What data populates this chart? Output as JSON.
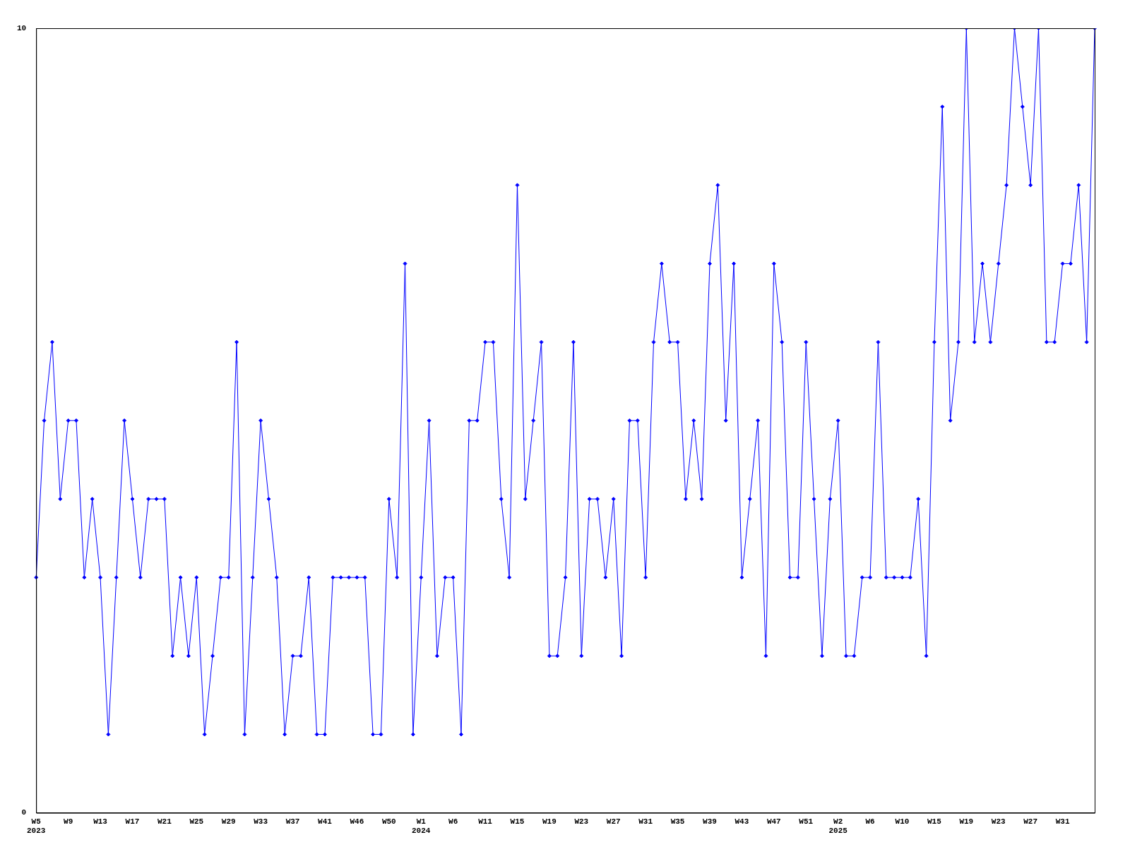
{
  "chart_data": {
    "type": "line",
    "categories": [
      "W5\n2023",
      null,
      null,
      null,
      "W9",
      null,
      null,
      null,
      "W13",
      null,
      null,
      null,
      "W17",
      null,
      null,
      null,
      "W21",
      null,
      null,
      null,
      "W25",
      null,
      null,
      null,
      "W29",
      null,
      null,
      null,
      "W33",
      null,
      null,
      null,
      "W37",
      null,
      null,
      null,
      "W41",
      null,
      null,
      null,
      "W46",
      null,
      null,
      null,
      "W50",
      null,
      null,
      null,
      "W1\n2024",
      null,
      null,
      null,
      "W6",
      null,
      null,
      null,
      "W11",
      null,
      null,
      null,
      "W15",
      null,
      null,
      null,
      "W19",
      null,
      null,
      null,
      "W23",
      null,
      null,
      null,
      "W27",
      null,
      null,
      null,
      "W31",
      null,
      null,
      null,
      "W35",
      null,
      null,
      null,
      "W39",
      null,
      null,
      null,
      "W43",
      null,
      null,
      null,
      "W47",
      null,
      null,
      null,
      "W51",
      null,
      null,
      null,
      "W2\n2025",
      null,
      null,
      null,
      "W6",
      null,
      null,
      null,
      "W10",
      null,
      null,
      null,
      "W15",
      null,
      null,
      null,
      "W19",
      null,
      null,
      null,
      "W23",
      null,
      null,
      null,
      "W27",
      null,
      null,
      null,
      "W31",
      null,
      null,
      null,
      null
    ],
    "series": [
      {
        "color": "#0000ff",
        "values": [
          3,
          5,
          6,
          4,
          5,
          5,
          3,
          4,
          3,
          1,
          3,
          5,
          4,
          3,
          4,
          4,
          4,
          2,
          3,
          2,
          3,
          1,
          2,
          3,
          3,
          6,
          1,
          3,
          5,
          4,
          3,
          1,
          2,
          2,
          3,
          1,
          1,
          3,
          3,
          3,
          3,
          3,
          1,
          1,
          4,
          3,
          7,
          1,
          3,
          5,
          2,
          3,
          3,
          1,
          5,
          5,
          6,
          6,
          4,
          3,
          8,
          4,
          5,
          6,
          2,
          2,
          3,
          6,
          2,
          4,
          4,
          3,
          4,
          2,
          5,
          5,
          3,
          6,
          7,
          6,
          6,
          4,
          5,
          4,
          7,
          8,
          5,
          7,
          3,
          4,
          5,
          2,
          7,
          6,
          3,
          3,
          6,
          4,
          2,
          4,
          5,
          2,
          2,
          3,
          3,
          6,
          3,
          3,
          3,
          3,
          4,
          2,
          6,
          9,
          5,
          6,
          10,
          6,
          7,
          6,
          7,
          8,
          10,
          9,
          8,
          10,
          6,
          6,
          7,
          7,
          8,
          6,
          10
        ]
      }
    ],
    "ylim": [
      0,
      10
    ],
    "yticks": [
      0,
      10
    ],
    "grid": false,
    "legend": false,
    "marker": "diamond",
    "line_style": "solid"
  }
}
